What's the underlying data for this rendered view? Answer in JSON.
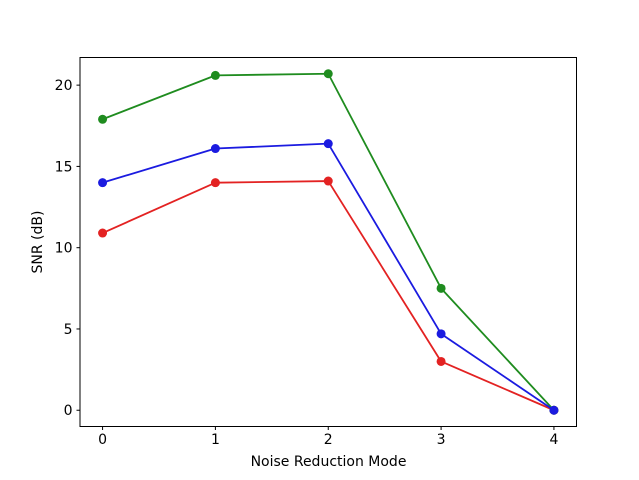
{
  "figure": {
    "background": "#ffffff",
    "frame_color": "#000000"
  },
  "chart_data": {
    "type": "line",
    "title": "",
    "xlabel": "Noise Reduction Mode",
    "ylabel": "SNR (dB)",
    "x": [
      0,
      1,
      2,
      3,
      4
    ],
    "xticks": [
      0,
      1,
      2,
      3,
      4
    ],
    "yticks": [
      0,
      5,
      10,
      15,
      20
    ],
    "xlim": [
      -0.2,
      4.2
    ],
    "ylim": [
      -1.0,
      21.7
    ],
    "grid": false,
    "legend": false,
    "marker": "circle",
    "series": [
      {
        "name": "red-series",
        "color": "#e32222",
        "values": [
          10.9,
          14.0,
          14.1,
          3.0,
          0.0
        ]
      },
      {
        "name": "green-series",
        "color": "#1f8c1f",
        "values": [
          17.9,
          20.6,
          20.7,
          7.5,
          0.0
        ]
      },
      {
        "name": "blue-series",
        "color": "#1b1be0",
        "values": [
          14.0,
          16.1,
          16.4,
          4.7,
          0.0
        ]
      }
    ]
  }
}
